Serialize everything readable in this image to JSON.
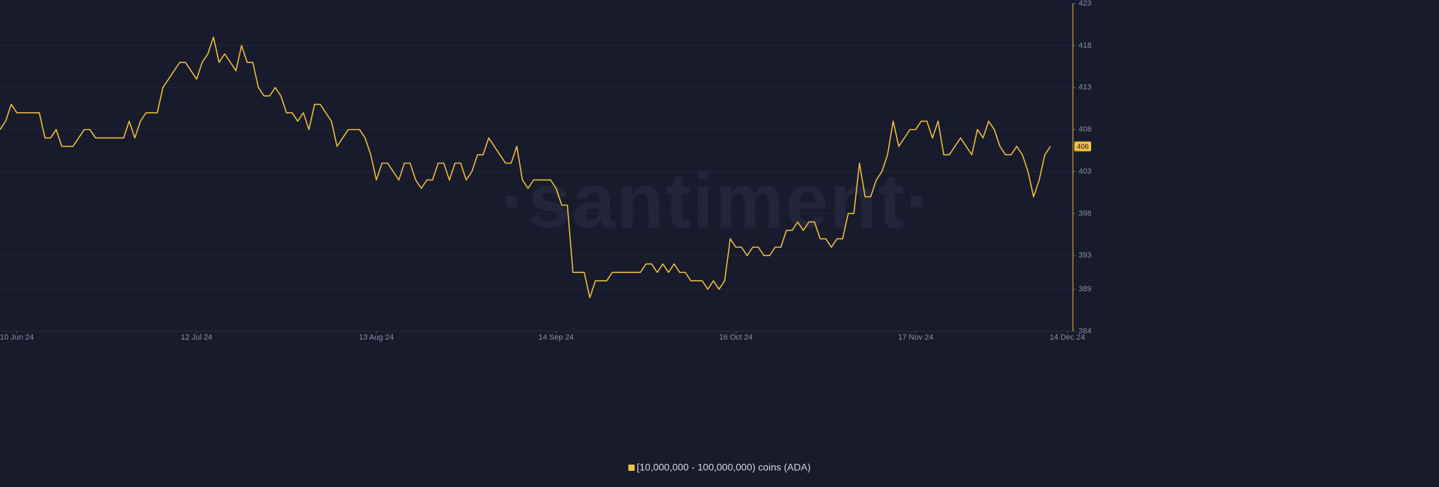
{
  "chart_data": {
    "type": "line",
    "watermark": "·santiment·",
    "x": [
      "2024-06-07",
      "2024-06-08",
      "2024-06-09",
      "2024-06-10",
      "2024-06-11",
      "2024-06-12",
      "2024-06-13",
      "2024-06-14",
      "2024-06-15",
      "2024-06-16",
      "2024-06-17",
      "2024-06-18",
      "2024-06-19",
      "2024-06-20",
      "2024-06-21",
      "2024-06-22",
      "2024-06-23",
      "2024-06-24",
      "2024-06-25",
      "2024-06-26",
      "2024-06-27",
      "2024-06-28",
      "2024-06-29",
      "2024-06-30",
      "2024-07-01",
      "2024-07-02",
      "2024-07-03",
      "2024-07-04",
      "2024-07-05",
      "2024-07-06",
      "2024-07-07",
      "2024-07-08",
      "2024-07-09",
      "2024-07-10",
      "2024-07-11",
      "2024-07-12",
      "2024-07-13",
      "2024-07-14",
      "2024-07-15",
      "2024-07-16",
      "2024-07-17",
      "2024-07-18",
      "2024-07-19",
      "2024-07-20",
      "2024-07-21",
      "2024-07-22",
      "2024-07-23",
      "2024-07-24",
      "2024-07-25",
      "2024-07-26",
      "2024-07-27",
      "2024-07-28",
      "2024-07-29",
      "2024-07-30",
      "2024-07-31",
      "2024-08-01",
      "2024-08-02",
      "2024-08-03",
      "2024-08-04",
      "2024-08-05",
      "2024-08-06",
      "2024-08-07",
      "2024-08-08",
      "2024-08-09",
      "2024-08-10",
      "2024-08-11",
      "2024-08-12",
      "2024-08-13",
      "2024-08-14",
      "2024-08-15",
      "2024-08-16",
      "2024-08-17",
      "2024-08-18",
      "2024-08-19",
      "2024-08-20",
      "2024-08-21",
      "2024-08-22",
      "2024-08-23",
      "2024-08-24",
      "2024-08-25",
      "2024-08-26",
      "2024-08-27",
      "2024-08-28",
      "2024-08-29",
      "2024-08-30",
      "2024-08-31",
      "2024-09-01",
      "2024-09-02",
      "2024-09-03",
      "2024-09-04",
      "2024-09-05",
      "2024-09-06",
      "2024-09-07",
      "2024-09-08",
      "2024-09-09",
      "2024-09-10",
      "2024-09-11",
      "2024-09-12",
      "2024-09-13",
      "2024-09-14",
      "2024-09-15",
      "2024-09-16",
      "2024-09-17",
      "2024-09-18",
      "2024-09-19",
      "2024-09-20",
      "2024-09-21",
      "2024-09-22",
      "2024-09-23",
      "2024-09-24",
      "2024-09-25",
      "2024-09-26",
      "2024-09-27",
      "2024-09-28",
      "2024-09-29",
      "2024-09-30",
      "2024-10-01",
      "2024-10-02",
      "2024-10-03",
      "2024-10-04",
      "2024-10-05",
      "2024-10-06",
      "2024-10-07",
      "2024-10-08",
      "2024-10-09",
      "2024-10-10",
      "2024-10-11",
      "2024-10-12",
      "2024-10-13",
      "2024-10-14",
      "2024-10-15",
      "2024-10-16",
      "2024-10-17",
      "2024-10-18",
      "2024-10-19",
      "2024-10-20",
      "2024-10-21",
      "2024-10-22",
      "2024-10-23",
      "2024-10-24",
      "2024-10-25",
      "2024-10-26",
      "2024-10-27",
      "2024-10-28",
      "2024-10-29",
      "2024-10-30",
      "2024-10-31",
      "2024-11-01",
      "2024-11-02",
      "2024-11-03",
      "2024-11-04",
      "2024-11-05",
      "2024-11-06",
      "2024-11-07",
      "2024-11-08",
      "2024-11-09",
      "2024-11-10",
      "2024-11-11",
      "2024-11-12",
      "2024-11-13",
      "2024-11-14",
      "2024-11-15",
      "2024-11-16",
      "2024-11-17",
      "2024-11-18",
      "2024-11-19",
      "2024-11-20",
      "2024-11-21",
      "2024-11-22",
      "2024-11-23",
      "2024-11-24",
      "2024-11-25",
      "2024-11-26",
      "2024-11-27",
      "2024-11-28",
      "2024-11-29",
      "2024-11-30",
      "2024-12-01",
      "2024-12-02",
      "2024-12-03",
      "2024-12-04",
      "2024-12-05",
      "2024-12-06",
      "2024-12-07",
      "2024-12-08",
      "2024-12-09",
      "2024-12-10",
      "2024-12-11"
    ],
    "series": [
      {
        "name": "[10,000,000 - 100,000,000) coins (ADA)",
        "color": "#f0c040",
        "values": [
          408,
          409,
          411,
          410,
          410,
          410,
          410,
          410,
          407,
          407,
          408,
          406,
          406,
          406,
          407,
          408,
          408,
          407,
          407,
          407,
          407,
          407,
          407,
          409,
          407,
          409,
          410,
          410,
          410,
          413,
          414,
          415,
          416,
          416,
          415,
          414,
          416,
          417,
          419,
          416,
          417,
          416,
          415,
          418,
          416,
          416,
          413,
          412,
          412,
          413,
          412,
          410,
          410,
          409,
          410,
          408,
          411,
          411,
          410,
          409,
          406,
          407,
          408,
          408,
          408,
          407,
          405,
          402,
          404,
          404,
          403,
          402,
          404,
          404,
          402,
          401,
          402,
          402,
          404,
          404,
          402,
          404,
          404,
          402,
          403,
          405,
          405,
          407,
          406,
          405,
          404,
          404,
          406,
          402,
          401,
          402,
          402,
          402,
          402,
          401,
          399,
          399,
          391,
          391,
          391,
          388,
          390,
          390,
          390,
          391,
          391,
          391,
          391,
          391,
          391,
          392,
          392,
          391,
          392,
          391,
          392,
          391,
          391,
          390,
          390,
          390,
          389,
          390,
          389,
          390,
          395,
          394,
          394,
          393,
          394,
          394,
          393,
          393,
          394,
          394,
          396,
          396,
          397,
          396,
          397,
          397,
          395,
          395,
          394,
          395,
          395,
          398,
          398,
          404,
          400,
          400,
          402,
          403,
          405,
          409,
          406,
          407,
          408,
          408,
          409,
          409,
          407,
          409,
          405,
          405,
          406,
          407,
          406,
          405,
          408,
          407,
          409,
          408,
          406,
          405,
          405,
          406,
          405,
          403,
          400,
          402,
          405,
          406
        ]
      }
    ],
    "current_value": 406,
    "xlim": [
      "2024-06-07",
      "2024-12-15"
    ],
    "xticks": [
      {
        "value": "2024-06-10",
        "label": "10 Jun 24"
      },
      {
        "value": "2024-07-12",
        "label": "12 Jul 24"
      },
      {
        "value": "2024-08-13",
        "label": "13 Aug 24"
      },
      {
        "value": "2024-09-14",
        "label": "14 Sep 24"
      },
      {
        "value": "2024-10-16",
        "label": "16 Oct 24"
      },
      {
        "value": "2024-11-17",
        "label": "17 Nov 24"
      },
      {
        "value": "2024-12-14",
        "label": "14 Dec 24"
      }
    ],
    "ylim": [
      384,
      423
    ],
    "yticks": [
      384,
      389,
      393,
      398,
      403,
      408,
      413,
      418,
      423
    ],
    "grid": true,
    "legend": "bottom"
  }
}
